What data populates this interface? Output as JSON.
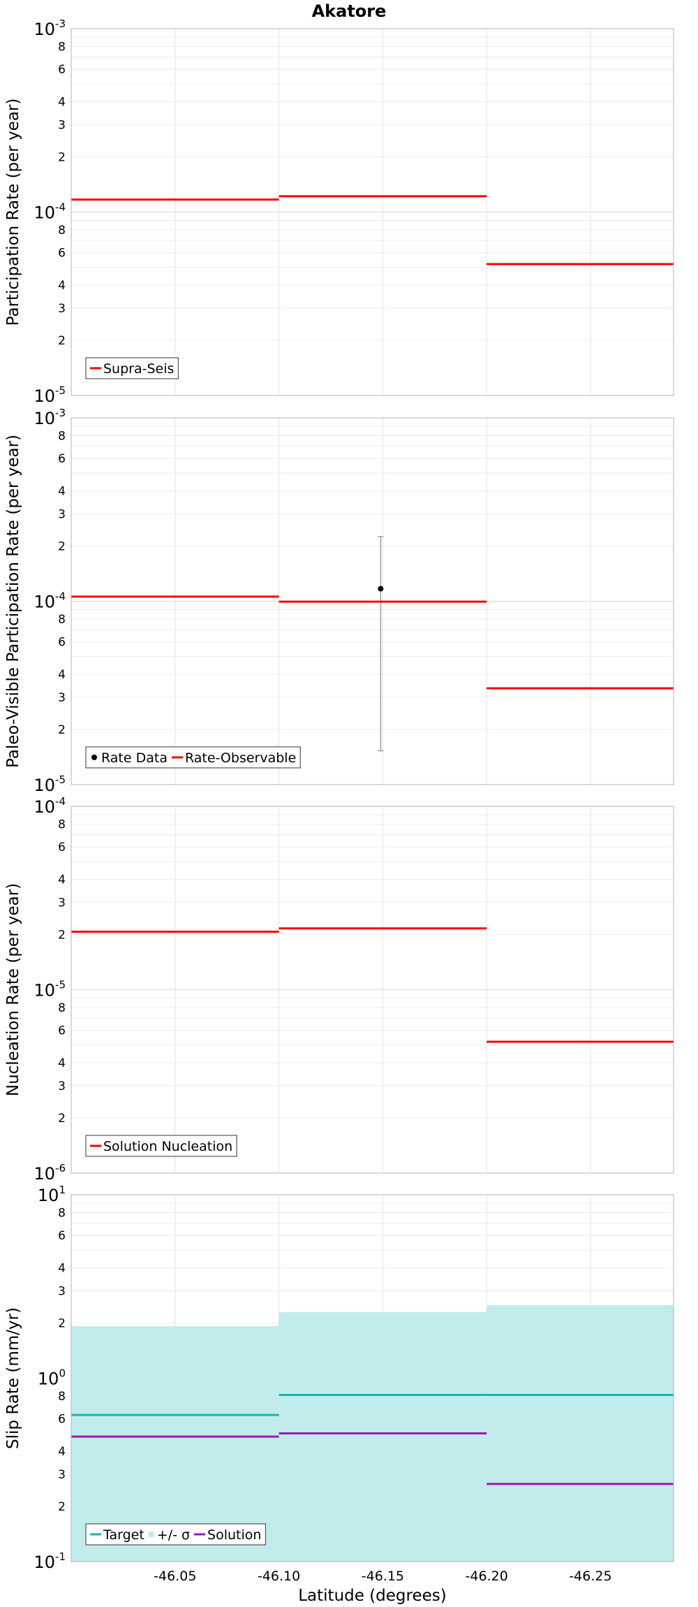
{
  "chart_data": {
    "title": "Akatore",
    "xlabel": "Latitude (degrees)",
    "xlim": [
      -46.0,
      -46.29
    ],
    "xticks": [
      -46.05,
      -46.1,
      -46.15,
      -46.2,
      -46.25
    ],
    "xtick_labels": [
      "-46.05",
      "-46.10",
      "-46.15",
      "-46.20",
      "-46.25"
    ],
    "panels": [
      {
        "type": "line",
        "ylabel": "Participation Rate (per year)",
        "yscale": "log",
        "ylim": [
          1e-05,
          0.001
        ],
        "major_ticks": [
          {
            "base": "10",
            "exp": "-5"
          },
          {
            "base": "10",
            "exp": "-4"
          },
          {
            "base": "10",
            "exp": "-3"
          }
        ],
        "series": [
          {
            "name": "Supra-Seis",
            "kind": "step",
            "color": "#ff0000",
            "segments": [
              [
                -46.0,
                -46.1,
                0.000117
              ],
              [
                -46.1,
                -46.2,
                0.000122
              ],
              [
                -46.2,
                -46.29,
                5.2e-05
              ]
            ]
          }
        ],
        "legend": [
          "Supra-Seis"
        ]
      },
      {
        "type": "line",
        "ylabel": "Paleo-Visible Participation Rate (per year)",
        "yscale": "log",
        "ylim": [
          1e-05,
          0.001
        ],
        "major_ticks": [
          {
            "base": "10",
            "exp": "-5"
          },
          {
            "base": "10",
            "exp": "-4"
          },
          {
            "base": "10",
            "exp": "-3"
          }
        ],
        "series": [
          {
            "name": "Rate Data",
            "kind": "point",
            "color": "#000000",
            "points": [
              {
                "x": -46.149,
                "y": 0.000117,
                "lo": 1.53e-05,
                "hi": 0.000225
              }
            ]
          },
          {
            "name": "Rate-Observable",
            "kind": "step",
            "color": "#ff0000",
            "segments": [
              [
                -46.0,
                -46.1,
                0.000106
              ],
              [
                -46.1,
                -46.2,
                9.95e-05
              ],
              [
                -46.2,
                -46.29,
                3.35e-05
              ]
            ]
          }
        ],
        "legend": [
          "Rate Data",
          "Rate-Observable"
        ]
      },
      {
        "type": "line",
        "ylabel": "Nucleation Rate (per year)",
        "yscale": "log",
        "ylim": [
          1e-06,
          0.0001
        ],
        "major_ticks": [
          {
            "base": "10",
            "exp": "-6"
          },
          {
            "base": "10",
            "exp": "-5"
          },
          {
            "base": "10",
            "exp": "-4"
          }
        ],
        "series": [
          {
            "name": "Solution Nucleation",
            "kind": "step",
            "color": "#ff0000",
            "segments": [
              [
                -46.0,
                -46.1,
                2.07e-05
              ],
              [
                -46.1,
                -46.2,
                2.16e-05
              ],
              [
                -46.2,
                -46.29,
                5.2e-06
              ]
            ]
          }
        ],
        "legend": [
          "Solution Nucleation"
        ]
      },
      {
        "type": "area",
        "ylabel": "Slip Rate (mm/yr)",
        "yscale": "log",
        "ylim": [
          0.1,
          10
        ],
        "major_ticks": [
          {
            "base": "10",
            "exp": "-1"
          },
          {
            "base": "10",
            "exp": "0"
          },
          {
            "base": "10",
            "exp": "1"
          }
        ],
        "series": [
          {
            "name": "+/- σ",
            "kind": "band",
            "color": "#c2ebeb",
            "segments": [
              [
                -46.0,
                -46.1,
                0.1,
                1.92
              ],
              [
                -46.1,
                -46.2,
                0.1,
                2.29
              ],
              [
                -46.2,
                -46.29,
                0.1,
                2.5
              ]
            ]
          },
          {
            "name": "Target",
            "kind": "step",
            "color": "#1ab2b2",
            "segments": [
              [
                -46.0,
                -46.1,
                0.63
              ],
              [
                -46.1,
                -46.2,
                0.81
              ],
              [
                -46.2,
                -46.29,
                0.81
              ]
            ]
          },
          {
            "name": "Solution",
            "kind": "step",
            "color": "#9a1ab2",
            "segments": [
              [
                -46.0,
                -46.1,
                0.48
              ],
              [
                -46.1,
                -46.2,
                0.5
              ],
              [
                -46.2,
                -46.29,
                0.265
              ]
            ]
          }
        ],
        "legend": [
          "Target",
          "+/- σ",
          "Solution"
        ]
      }
    ]
  }
}
